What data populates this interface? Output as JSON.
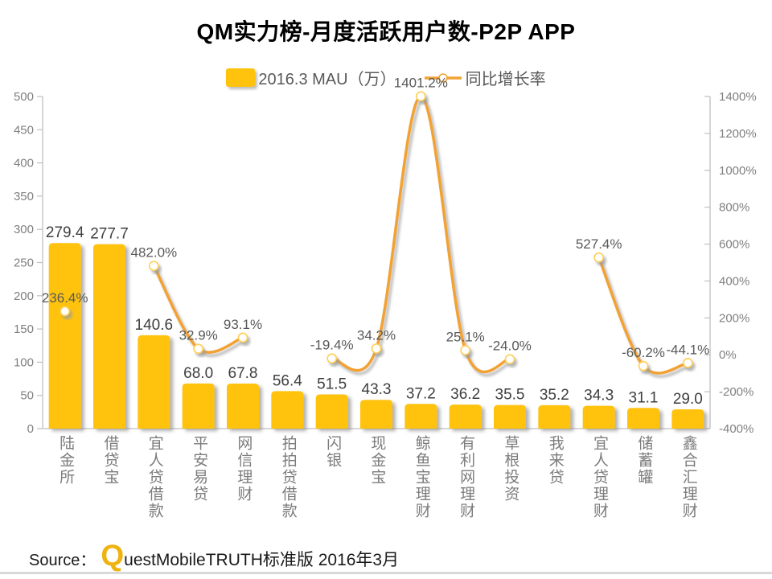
{
  "title": "QM实力榜-月度活跃用户数-P2P APP",
  "legend": {
    "bar_label": "2016.3 MAU（万）",
    "line_label": "同比增长率"
  },
  "footer": {
    "source_label": "Source：",
    "brand_q": "Q",
    "brand_rest": "uestMobile",
    "brand_suffix": " TRUTH标准版 2016年3月"
  },
  "colors": {
    "background": "#FFFFFF",
    "bar": "#FFC30E",
    "line": "#F2A233",
    "marker_fill": "#FFFFFF",
    "marker_stroke": "#FFCF54",
    "axis": "#BFBFBF",
    "axis_label": "#7F7F7F",
    "bar_value_label": "#3F3F3F",
    "growth_label": "#595959",
    "category_label": "#7C7C7C",
    "legend_text": "#595959",
    "title": "#000000",
    "logo_gold": "#EFB30F",
    "divider": "#D9D9D9"
  },
  "chart_data": {
    "type": "combo-bar-line",
    "title": "QM实力榜-月度活跃用户数-P2P APP",
    "categories": [
      "陆金所",
      "借贷宝",
      "宜人贷借款",
      "平安易贷",
      "网信理财",
      "拍拍贷借款",
      "闪银",
      "现金宝",
      "鲸鱼宝理财",
      "有利网理财",
      "草根投资",
      "我来贷",
      "宜人贷理财",
      "储蓄罐",
      "鑫合汇理财"
    ],
    "series": [
      {
        "name": "2016.3 MAU（万）",
        "type": "bar",
        "axis": "left",
        "values": [
          279.4,
          277.7,
          140.6,
          68.0,
          67.8,
          56.4,
          51.5,
          43.3,
          37.2,
          36.2,
          35.5,
          35.2,
          34.3,
          31.1,
          29.0
        ]
      },
      {
        "name": "同比增长率",
        "type": "line",
        "axis": "right",
        "unit": "%",
        "values": [
          236.4,
          null,
          482.0,
          32.9,
          93.1,
          null,
          -19.4,
          34.2,
          1401.2,
          25.1,
          -24.0,
          null,
          527.4,
          -60.2,
          -44.1
        ]
      }
    ],
    "left_axis": {
      "min": 0,
      "max": 500,
      "step": 50
    },
    "right_axis": {
      "min": -400,
      "max": 1400,
      "step": 200,
      "suffix": "%"
    },
    "grid": false,
    "legend_position": "top",
    "line_smooth": true
  }
}
